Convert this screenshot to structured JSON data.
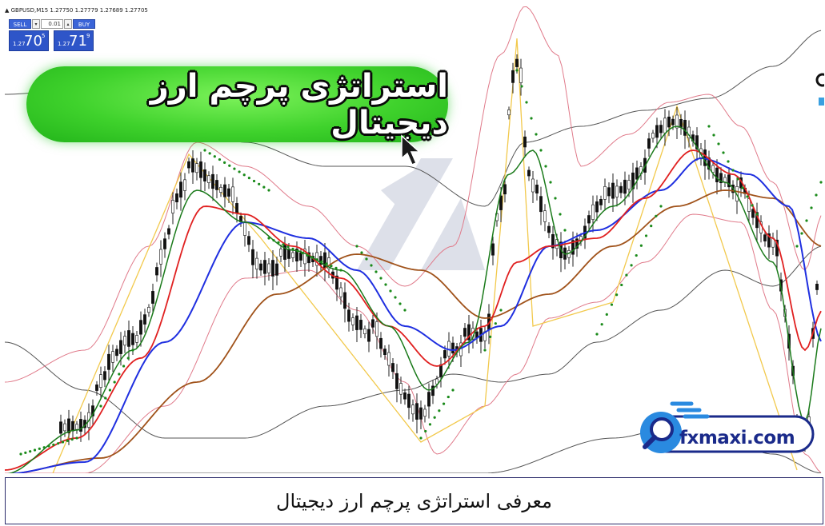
{
  "window": {
    "symbol_line": "▲ GBPUSD,M15  1.27750 1.27779 1.27689 1.27705"
  },
  "trade_panel": {
    "sell_label": "SELL",
    "buy_label": "BUY",
    "lot_value": "0.01",
    "down_arrow": "▾",
    "up_arrow": "▴",
    "sell_price_prefix": "1.27",
    "sell_price_big": "70",
    "sell_price_sup": "5",
    "buy_price_prefix": "1.27",
    "buy_price_big": "71",
    "buy_price_sup": "9"
  },
  "banner": {
    "title": "استراتژی پرچم ارز دیجیتال"
  },
  "logo": {
    "text": "fxmaxi.com",
    "icon": "magnifier-icon"
  },
  "caption": {
    "text": "معرفی استراتژی پرچم ارز دیجیتال"
  },
  "colors": {
    "banner_green": "#3fd22c",
    "ma_blue": "#1f2fe0",
    "ma_red": "#e02020",
    "ma_green": "#1a7a1a",
    "ma_brown": "#a0521a",
    "bollinger": "#e07a8a",
    "envelope": "#555555",
    "zigzag": "#f2c94c",
    "parabolic_sar": "#1a8a1a",
    "logo_blue": "#1a2a8a"
  }
}
